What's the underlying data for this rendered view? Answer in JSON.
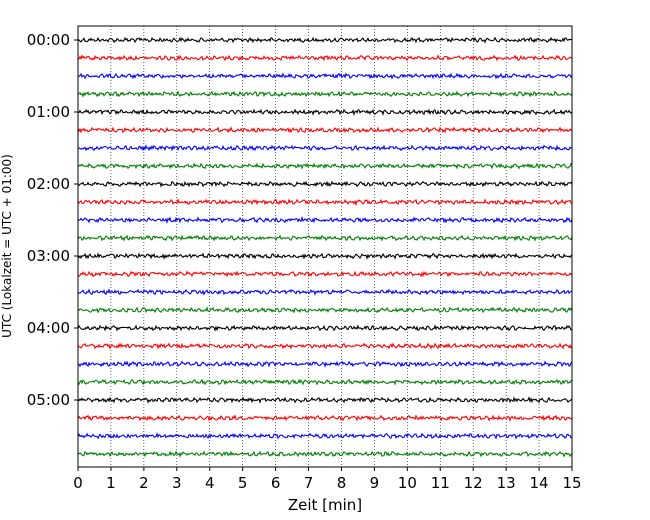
{
  "chart_data": {
    "type": "line",
    "title": "",
    "xlabel": "Zeit  [min]",
    "ylabel": "UTC (Lokalzeit = UTC + 01:00)",
    "xlim": [
      0,
      15
    ],
    "x_ticks": [
      "0",
      "1",
      "2",
      "3",
      "4",
      "5",
      "6",
      "7",
      "8",
      "9",
      "10",
      "11",
      "12",
      "13",
      "14",
      "15"
    ],
    "y_tick_labels": [
      "00:00",
      "01:00",
      "02:00",
      "03:00",
      "04:00",
      "05:00"
    ],
    "grid": "vertical dotted at each minute",
    "trace_interval_minutes": 15,
    "traces_count": 24,
    "trace_colors": [
      "#000000",
      "#ff0000",
      "#0000ff",
      "#008000"
    ]
  }
}
